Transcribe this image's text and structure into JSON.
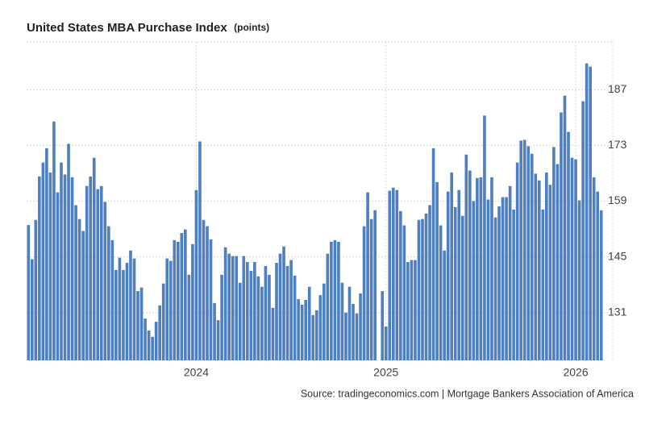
{
  "chart_data": {
    "type": "bar",
    "title": "United States MBA Purchase Index",
    "unit": "(points)",
    "source": "Source: tradingeconomics.com | Mortgage Bankers Association of America",
    "color": "#4e7fbf",
    "grid": true,
    "ylim": [
      119,
      199
    ],
    "yticks": [
      131,
      145,
      159,
      173,
      187
    ],
    "categories": [
      null,
      null,
      null,
      null,
      null,
      null,
      null,
      null,
      null,
      null,
      null,
      null,
      null,
      null,
      null,
      null,
      null,
      null,
      null,
      null,
      null,
      null,
      null,
      null,
      null,
      null,
      null,
      null,
      null,
      null,
      null,
      null,
      null,
      null,
      null,
      null,
      null,
      null,
      null,
      null,
      null,
      null,
      null,
      null,
      null,
      null,
      "2024",
      null,
      null,
      null,
      null,
      null,
      null,
      null,
      null,
      null,
      null,
      null,
      null,
      null,
      null,
      null,
      null,
      null,
      null,
      null,
      null,
      null,
      null,
      null,
      null,
      null,
      null,
      null,
      null,
      null,
      null,
      null,
      null,
      null,
      null,
      null,
      null,
      null,
      null,
      null,
      null,
      null,
      null,
      null,
      null,
      null,
      null,
      null,
      null,
      null,
      null,
      null,
      "2025",
      null,
      null,
      null,
      null,
      null,
      null,
      null,
      null,
      null,
      null,
      null,
      null,
      null,
      null,
      null,
      null,
      null,
      null,
      null,
      null,
      null,
      null,
      null,
      null,
      null,
      null,
      null,
      null,
      null,
      null,
      null,
      null,
      null,
      null,
      null,
      null,
      null,
      null,
      null,
      null,
      null,
      null,
      null,
      null,
      null,
      null,
      null,
      null,
      null,
      null,
      null,
      "2026",
      null,
      null,
      null,
      null,
      null,
      null,
      null
    ],
    "values": [
      153,
      144.4,
      154.3,
      165.2,
      168.7,
      172.3,
      166.2,
      179,
      161.2,
      168.7,
      165.7,
      173.4,
      165,
      158,
      154.5,
      151.5,
      162.8,
      165.2,
      169.9,
      162,
      162.8,
      158.8,
      152.7,
      149.2,
      141.7,
      144.8,
      141.7,
      143.5,
      146.6,
      144.6,
      136.4,
      137.3,
      129.5,
      126.5,
      124.9,
      128.7,
      132.8,
      138.3,
      144.6,
      144,
      149.2,
      148.8,
      151,
      151.9,
      140.5,
      148.2,
      161.8,
      174,
      154.3,
      152.7,
      149.4,
      133.4,
      129.1,
      140.5,
      147.4,
      145.8,
      145.2,
      145.2,
      138.5,
      145.2,
      143.7,
      141.5,
      143.7,
      140.1,
      137.5,
      142.7,
      140.5,
      132.2,
      143.5,
      145.8,
      147.6,
      142.7,
      144.2,
      140.3,
      134.4,
      133,
      134.2,
      137.5,
      130.4,
      131.6,
      135.4,
      138.3,
      145.8,
      148.8,
      149.2,
      148.8,
      138.5,
      131,
      137.5,
      133.2,
      130.8,
      135.8,
      152.7,
      161.2,
      154.5,
      156.7,
      null,
      136.4,
      127.5,
      161.6,
      162.4,
      161.8,
      156.5,
      152.9,
      143.7,
      144.2,
      144.2,
      154.3,
      154.5,
      155.9,
      158,
      172.3,
      163.8,
      152.9,
      146.6,
      161.4,
      166.2,
      157.5,
      161.8,
      155.3,
      170.7,
      166.7,
      159,
      164.8,
      165,
      180.5,
      159.4,
      165,
      154.9,
      157.7,
      160,
      160,
      162.8,
      156.9,
      168.7,
      174.2,
      174.4,
      172.8,
      170.9,
      165.9,
      164.2,
      156.9,
      166.2,
      163.1,
      172.6,
      168.3,
      181.3,
      185.5,
      176.4,
      169.9,
      169.5,
      159.2,
      184.1,
      193.6,
      192.8,
      165,
      161.4,
      156.7
    ]
  }
}
